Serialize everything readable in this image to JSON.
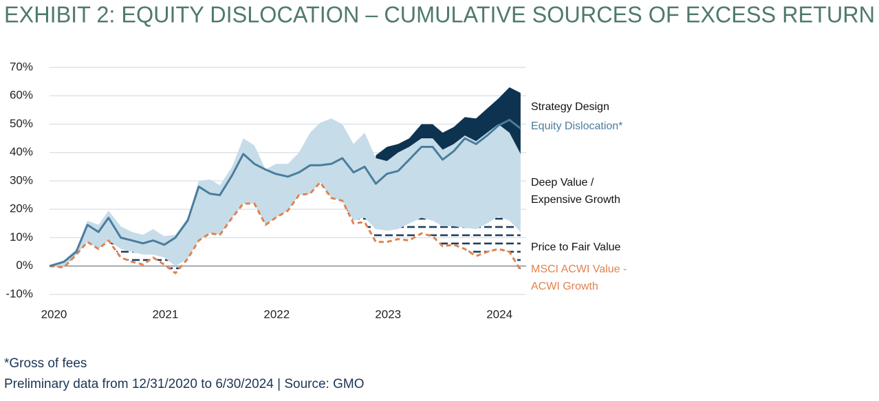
{
  "chart_data": {
    "type": "line",
    "title": "EXHIBIT 2: EQUITY DISLOCATION – CUMULATIVE SOURCES OF EXCESS RETURN",
    "footnote": "*Gross of fees",
    "source": "Preliminary data from 12/31/2020 to 6/30/2024 | Source: GMO",
    "x": [
      2019.96,
      2020.09,
      2020.2,
      2020.3,
      2020.4,
      2020.49,
      2020.6,
      2020.7,
      2020.8,
      2020.89,
      2020.99,
      2021.09,
      2021.2,
      2021.3,
      2021.4,
      2021.49,
      2021.6,
      2021.7,
      2021.8,
      2021.9,
      2021.99,
      2022.1,
      2022.2,
      2022.3,
      2022.39,
      2022.49,
      2022.59,
      2022.69,
      2022.79,
      2022.89,
      2022.99,
      2023.09,
      2023.19,
      2023.3,
      2023.4,
      2023.49,
      2023.59,
      2023.69,
      2023.79,
      2023.89,
      2023.99,
      2024.09,
      2024.19
    ],
    "xlim": [
      2019.96,
      2024.24
    ],
    "xticks": [
      2020,
      2021,
      2022,
      2023,
      2024
    ],
    "ylim": [
      -10,
      70
    ],
    "yticks": [
      {
        "value": -10,
        "label": "-10%"
      },
      {
        "value": 0,
        "label": "0%"
      },
      {
        "value": 10,
        "label": "10%"
      },
      {
        "value": 20,
        "label": "20%"
      },
      {
        "value": 30,
        "label": "30%"
      },
      {
        "value": 40,
        "label": "40%"
      },
      {
        "value": 50,
        "label": "50%"
      },
      {
        "value": 60,
        "label": "60%"
      },
      {
        "value": 70,
        "label": "70%"
      }
    ],
    "grid": true,
    "series": [
      {
        "name": "Strategy Design",
        "type": "band",
        "color": "#0d3350",
        "values": [
          null,
          null,
          null,
          null,
          null,
          null,
          null,
          null,
          null,
          null,
          null,
          null,
          null,
          null,
          null,
          null,
          null,
          null,
          null,
          null,
          null,
          null,
          null,
          null,
          null,
          null,
          null,
          null,
          null,
          39,
          42,
          43,
          45,
          50,
          50,
          47,
          49,
          52.5,
          52,
          55.5,
          59,
          63,
          61
        ],
        "lower": [
          null,
          null,
          null,
          null,
          null,
          null,
          null,
          null,
          null,
          null,
          null,
          null,
          null,
          null,
          null,
          null,
          null,
          null,
          null,
          null,
          null,
          null,
          null,
          null,
          null,
          null,
          null,
          null,
          null,
          38,
          37,
          40,
          42,
          45,
          45,
          41,
          43,
          46,
          44,
          47,
          50,
          47,
          39.5
        ]
      },
      {
        "name": "Equity Dislocation*",
        "type": "line",
        "color": "#4a7d9c",
        "values": [
          0,
          1.5,
          5,
          14.5,
          12,
          17,
          10,
          9,
          8,
          9,
          7.5,
          10,
          16,
          28,
          25.5,
          25,
          32,
          39.5,
          36,
          34,
          32.5,
          31.5,
          33,
          35.5,
          35.5,
          36,
          38,
          33,
          35,
          29,
          32.5,
          33.5,
          37.5,
          42,
          42,
          37.5,
          40.5,
          45,
          43,
          46,
          49.5,
          51.5,
          48.5
        ]
      },
      {
        "name": "Deep Value / Expensive Growth",
        "type": "band",
        "color": "#c6dce9",
        "values": [
          0,
          2,
          6,
          16,
          14.5,
          19.5,
          14,
          12,
          11,
          13,
          10.5,
          11,
          17,
          30,
          30.5,
          28.5,
          35,
          45,
          42.5,
          34,
          36,
          36,
          40,
          47,
          50.5,
          52,
          50,
          43,
          47,
          38,
          37,
          40,
          42,
          45,
          45,
          41,
          43,
          46,
          44,
          47,
          50,
          47,
          39.5
        ],
        "lower": [
          0,
          0,
          4,
          8.5,
          6,
          9,
          6,
          5,
          4,
          4,
          3,
          0,
          2.5,
          9,
          11.5,
          11,
          17,
          22,
          22,
          14.5,
          17,
          19.5,
          25,
          25.5,
          29.5,
          24,
          23,
          16,
          17,
          13,
          12.5,
          13,
          15,
          17,
          16,
          14,
          14,
          13.5,
          13,
          15,
          17.5,
          16,
          12
        ]
      },
      {
        "name": "Price to Fair Value",
        "type": "band",
        "fill": "hatch",
        "color": "#1d3d5a",
        "values": [
          0,
          0,
          4,
          8.5,
          6,
          9,
          6,
          5,
          4,
          4,
          3,
          0,
          2.5,
          9,
          11.5,
          11,
          17,
          22,
          22,
          14.5,
          17,
          19.5,
          25,
          25.5,
          29.5,
          24,
          23,
          16,
          17,
          13,
          12.5,
          13,
          15,
          17,
          16,
          14,
          14,
          13.5,
          13,
          15,
          17.5,
          16,
          12
        ],
        "lower": [
          0,
          -0.5,
          4,
          8.5,
          6,
          9,
          3,
          1.5,
          0.5,
          3,
          0.5,
          -2.5,
          2.5,
          9,
          11.5,
          11,
          17,
          22,
          22,
          14.5,
          17,
          19.5,
          25,
          25.5,
          29.5,
          24,
          23,
          15,
          15.5,
          8.5,
          8.5,
          9.5,
          9,
          11.5,
          10.5,
          7,
          7.5,
          6,
          3.5,
          5,
          6,
          5,
          -1.5
        ]
      },
      {
        "name": "MSCI ACWI Value - ACWI Growth",
        "type": "line",
        "dash": true,
        "color": "#e0824f",
        "values": [
          0,
          -0.5,
          4,
          8.5,
          6,
          9,
          3,
          1.5,
          0.5,
          3,
          0.5,
          -2.5,
          2.5,
          9,
          11.5,
          11,
          17,
          22,
          22,
          14.5,
          17,
          19.5,
          25,
          25.5,
          29.5,
          24,
          23,
          15,
          15.5,
          8.5,
          8.5,
          9.5,
          9,
          11.5,
          10.5,
          7,
          7.5,
          6,
          3.5,
          5,
          6,
          5,
          -1.5
        ]
      }
    ]
  }
}
